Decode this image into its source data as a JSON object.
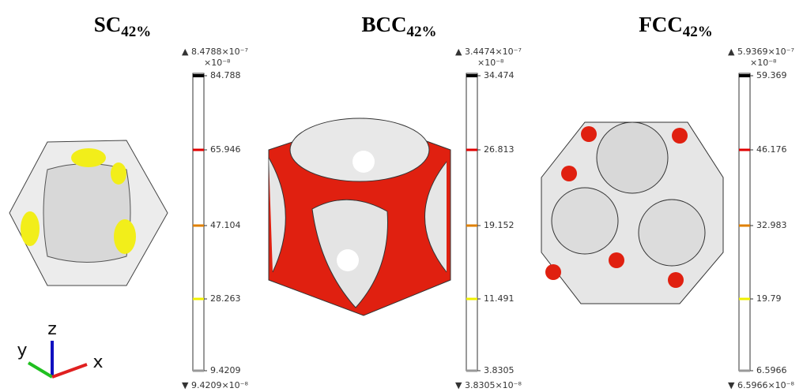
{
  "panels": [
    {
      "title": "SC",
      "subscript": "42%",
      "max_label": "▲ 8.4788×10⁻⁷",
      "unit": "×10⁻⁸",
      "ticks": [
        "84.788",
        "65.946",
        "47.104",
        "28.263",
        "9.4209"
      ],
      "min_label": "▼ 9.4209×10⁻⁸"
    },
    {
      "title": "BCC",
      "subscript": "42%",
      "max_label": "▲ 3.4474×10⁻⁷",
      "unit": "×10⁻⁸",
      "ticks": [
        "34.474",
        "26.813",
        "19.152",
        "11.491",
        "3.8305"
      ],
      "min_label": "▼ 3.8305×10⁻⁸"
    },
    {
      "title": "FCC",
      "subscript": "42%",
      "max_label": "▲ 5.9369×10⁻⁷",
      "unit": "×10⁻⁸",
      "ticks": [
        "59.369",
        "46.176",
        "32.983",
        "19.79",
        "6.5966"
      ],
      "min_label": "▼ 6.5966×10⁻⁸"
    }
  ],
  "axes": {
    "z": "z",
    "y": "y",
    "x": "x"
  }
}
